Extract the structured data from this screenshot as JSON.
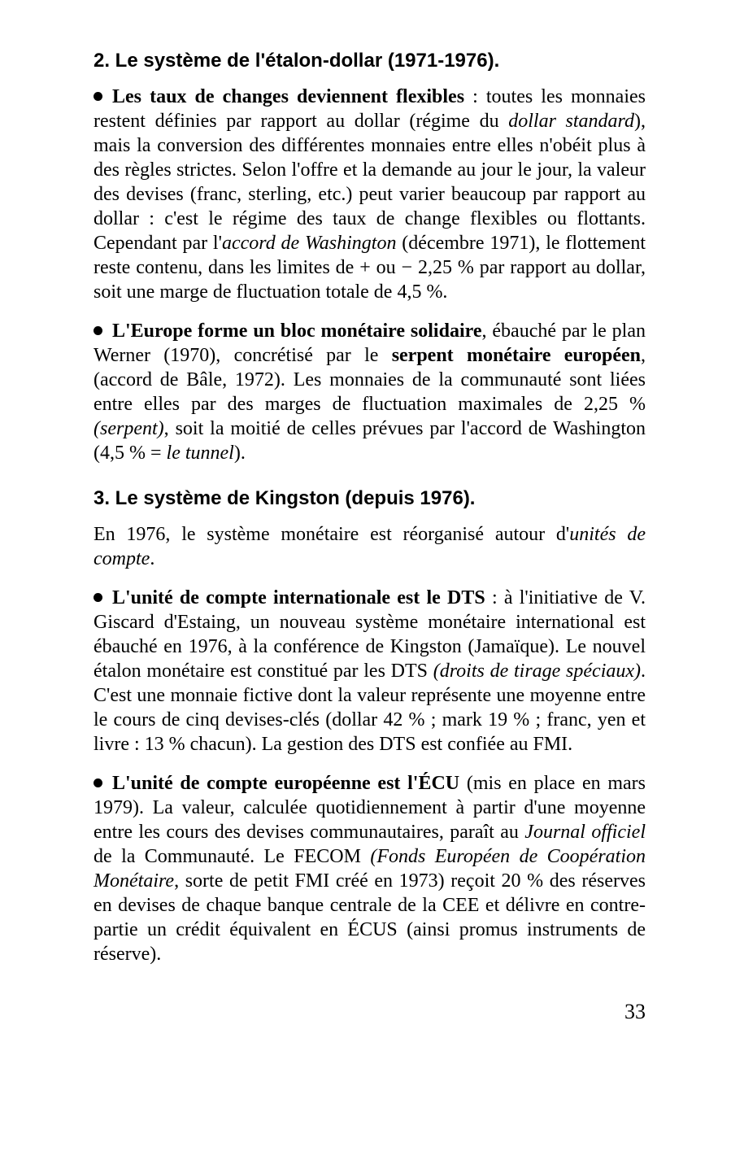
{
  "section2": {
    "heading": "2. Le système de l'étalon-dollar (1971-1976).",
    "p1": {
      "lead": "Les taux de changes deviennent flexibles",
      "a": " : toutes les monnaies restent définies par rapport au dollar (régime du ",
      "i1": "dollar standard",
      "b": "), mais la conversion des différentes monnaies entre elles n'obéit plus à des règles strictes. Selon l'offre et la demande au jour le jour, la valeur des devises (franc, sterling, etc.) peut varier beaucoup par rapport au dollar : c'est le régime des taux de change flexibles ou flottants. Cependant par l'",
      "i2": "accord de Washington",
      "c": " (décembre 1971), le flottement reste contenu, dans les limites de + ou − 2,25 % par rapport au dollar, soit une marge de fluctuation totale de 4,5 %."
    },
    "p2": {
      "lead": "L'Europe forme un bloc monétaire solidaire",
      "a": ", ébauché par le plan Werner (1970), concrétisé par le ",
      "bold1": "serpent moné­taire européen",
      "b": ", (accord de Bâle, 1972). Les monnaies de la communauté sont liées entre elles par des marges de fluctuation maximales de 2,25 % ",
      "i1": "(serpent)",
      "c": ", soit la moitié de celles prévues par l'accord de Washington (4,5 % = ",
      "i2": "le tunnel",
      "d": ")."
    }
  },
  "section3": {
    "heading": "3. Le système de Kingston (depuis 1976).",
    "intro": {
      "a": "En 1976, le système monétaire est réorganisé autour d'",
      "i1": "unités de compte",
      "b": "."
    },
    "p1": {
      "lead": "L'unité de compte internationale est le DTS",
      "a": " : à l'initia­tive de V. Giscard d'Estaing, un nouveau système monétaire international est ébauché en 1976, à la conférence de Kingston (Jamaïque). Le nouvel étalon monétaire est constitué par les DTS ",
      "i1": "(droits de tirage spéciaux)",
      "b": ". C'est une monnaie fictive dont la valeur représente une moyenne entre le cours de cinq devises-clés (dollar 42 % ; mark 19 % ; franc, yen et livre : 13 % chacun). La gestion des DTS est confiée au FMI."
    },
    "p2": {
      "lead": "L'unité de compte européenne est l'ÉCU",
      "a": " (mis en place en mars 1979). La valeur, calculée quotidiennement à partir d'une moyenne entre les cours des devises communautaires, paraît au ",
      "i1": "Journal officiel",
      "b": " de la Communauté. Le FECOM ",
      "i2": "(Fonds Européen de Coopération Monétaire",
      "c": ", sorte de petit FMI créé en 1973) reçoit 20 % des réserves en devises de chaque banque centrale de la CEE et délivre en contre­partie un crédit équivalent en ÉCUS (ainsi promus instru­ments de réserve)."
    }
  },
  "pagenum": "33"
}
